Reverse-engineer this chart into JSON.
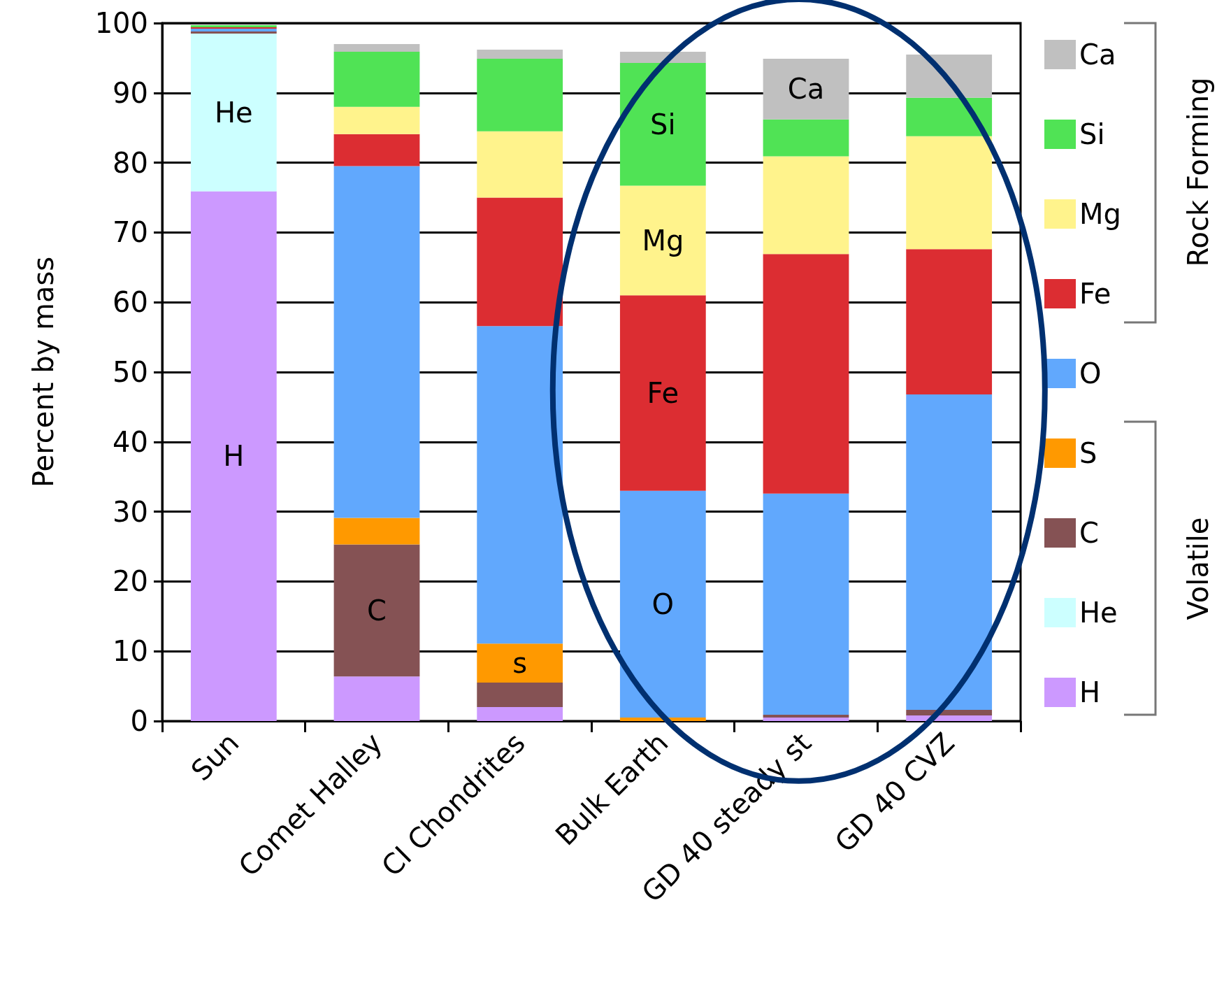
{
  "chart_data": {
    "type": "bar",
    "stacked": true,
    "ylabel": "Percent by mass",
    "categories": [
      "Sun",
      "Comet Halley",
      "CI Chondrites",
      "Bulk Earth",
      "GD 40 steady st",
      "GD 40 CVZ"
    ],
    "series": [
      {
        "name": "H",
        "color": "#cc99ff",
        "values": [
          75.9,
          6.4,
          2.0,
          null,
          0.5,
          0.8
        ]
      },
      {
        "name": "He",
        "color": "#ccffff",
        "values": [
          22.6,
          null,
          null,
          null,
          null,
          null
        ]
      },
      {
        "name": "C",
        "color": "#855254",
        "values": [
          0.3,
          18.9,
          3.5,
          null,
          0.4,
          0.8
        ]
      },
      {
        "name": "S",
        "color": "#ff9900",
        "values": [
          null,
          3.8,
          5.6,
          0.5,
          null,
          null
        ]
      },
      {
        "name": "O",
        "color": "#61a8fd",
        "values": [
          0.4,
          50.4,
          45.5,
          32.5,
          31.7,
          45.2
        ]
      },
      {
        "name": "Fe",
        "color": "#dc2d32",
        "values": [
          0.2,
          4.6,
          18.4,
          28.0,
          34.3,
          20.8
        ]
      },
      {
        "name": "Mg",
        "color": "#fff38c",
        "values": [
          null,
          3.9,
          9.5,
          15.7,
          14.0,
          16.2
        ]
      },
      {
        "name": "Si",
        "color": "#50e355",
        "values": [
          0.3,
          7.9,
          10.4,
          17.6,
          5.3,
          5.5
        ]
      },
      {
        "name": "Ca",
        "color": "#c0c0c0",
        "values": [
          null,
          1.1,
          1.3,
          1.6,
          8.7,
          6.2
        ]
      }
    ],
    "ylim": [
      0,
      100
    ],
    "yticks": [
      0,
      10,
      20,
      30,
      40,
      50,
      60,
      70,
      80,
      90,
      100
    ],
    "grid": "y",
    "legend": "right",
    "annotations": [
      "Rock Forming",
      "Volatile",
      "He",
      "H",
      "C",
      "s",
      "Si",
      "Mg",
      "Fe",
      "O",
      "Ca"
    ]
  }
}
